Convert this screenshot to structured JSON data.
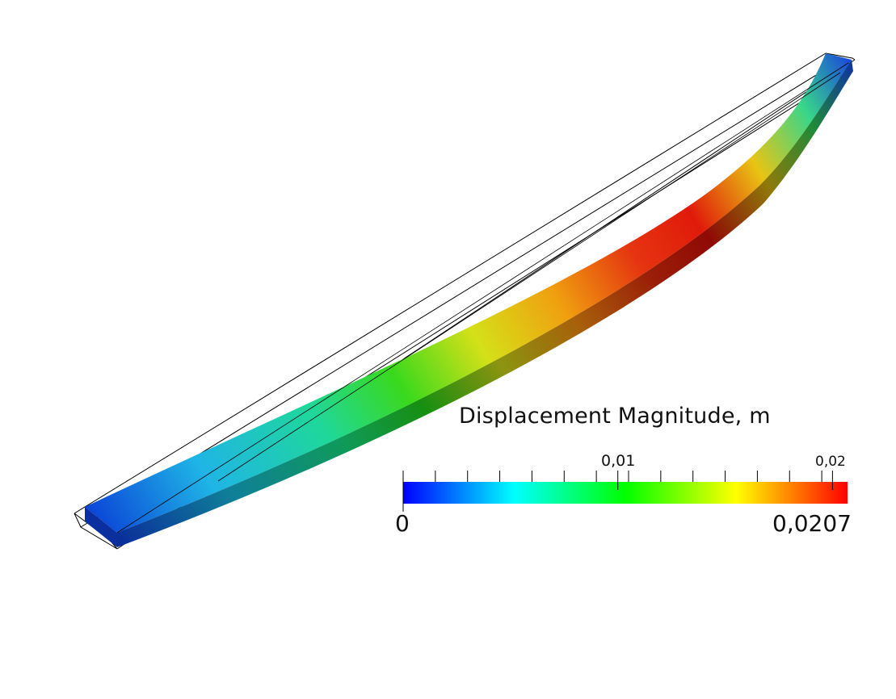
{
  "legend": {
    "title": "Displacement Magnitude, m",
    "min_label": "0",
    "max_label": "0,0207",
    "tick_labels": [
      "0,01",
      "0,02"
    ],
    "range": [
      0,
      0.0207
    ],
    "colormap": [
      "#0000ff",
      "#00ffff",
      "#00ff00",
      "#ffff00",
      "#ff0000"
    ]
  },
  "colors": {
    "low": "#0000ff",
    "mid": "#00ff00",
    "high": "#ff0000",
    "outline": "#000000"
  }
}
